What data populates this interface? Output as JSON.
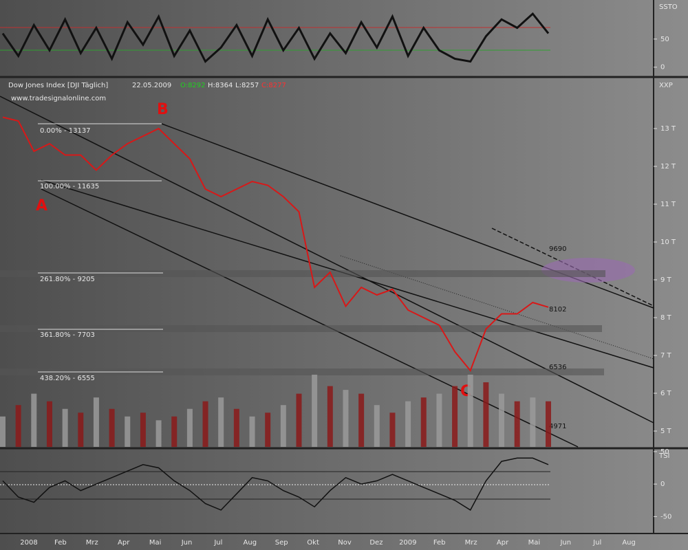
{
  "stochastic_panel": {
    "label": "SSTO",
    "ylim": [
      -15,
      117
    ],
    "ticks": [
      50,
      0
    ],
    "values": [
      60,
      20,
      75,
      30,
      85,
      25,
      70,
      15,
      80,
      40,
      90,
      20,
      65,
      10,
      35,
      75,
      20,
      85,
      30,
      70,
      15,
      60,
      25,
      80,
      35,
      90,
      20,
      70,
      30,
      15,
      10,
      55,
      85,
      70,
      95,
      60
    ]
  },
  "main_panel": {
    "title": "Dow Jones Index [DJI  Täglich]",
    "date": "22.05.2009",
    "ohlc": [
      "O:8292",
      "H:8364",
      "L:8257",
      "C:8277"
    ],
    "website": "www.tradesignalonline.com",
    "label": "XXP",
    "ylim": [
      4582,
      14309
    ],
    "ticks": [
      {
        "value": 13000,
        "label": "13 T"
      },
      {
        "value": 12000,
        "label": "12 T"
      },
      {
        "value": 11000,
        "label": "11 T"
      },
      {
        "value": 10000,
        "label": "10 T"
      },
      {
        "value": 9000,
        "label": "9 T"
      },
      {
        "value": 8000,
        "label": "8 T"
      },
      {
        "value": 7000,
        "label": "7 T"
      },
      {
        "value": 6000,
        "label": "6 T"
      },
      {
        "value": 5000,
        "label": "5 T"
      }
    ],
    "closes": [
      13300,
      13200,
      12400,
      12600,
      12300,
      12300,
      11900,
      12300,
      12600,
      12800,
      13000,
      12600,
      12200,
      11400,
      11200,
      11400,
      11600,
      11500,
      11200,
      10800,
      8800,
      9200,
      8300,
      8800,
      8600,
      8750,
      8200,
      8000,
      7800,
      7100,
      6600,
      7700,
      8100,
      8100,
      8400,
      8277
    ],
    "volume": [
      40,
      55,
      70,
      60,
      50,
      45,
      65,
      50,
      40,
      45,
      35,
      40,
      50,
      60,
      65,
      50,
      40,
      45,
      55,
      70,
      95,
      80,
      75,
      70,
      55,
      45,
      60,
      65,
      70,
      80,
      95,
      85,
      70,
      60,
      65,
      60
    ],
    "points": [
      "A",
      "B",
      "C"
    ],
    "fib_levels": [
      "0.00% - 13137",
      "100.00% - 11635",
      "261.80% - 9205",
      "361.80% - 7703",
      "438.20% - 6555"
    ],
    "level_labels": [
      "9690",
      "8102",
      "6536",
      "4971"
    ]
  },
  "tsi_panel": {
    "label": "TSI",
    "ylim": [
      -75,
      52
    ],
    "ticks": [
      50,
      0,
      -50
    ],
    "values": [
      5,
      -20,
      -28,
      -5,
      5,
      -10,
      0,
      10,
      20,
      30,
      25,
      5,
      -10,
      -30,
      -40,
      -15,
      10,
      5,
      -10,
      -20,
      -35,
      -10,
      10,
      0,
      5,
      15,
      5,
      -5,
      -15,
      -25,
      -40,
      5,
      35,
      40,
      40,
      30
    ]
  },
  "time_axis": {
    "labels": [
      "2008",
      "Feb",
      "Mrz",
      "Apr",
      "Mai",
      "Jun",
      "Jul",
      "Aug",
      "Sep",
      "Okt",
      "Nov",
      "Dez",
      "2009",
      "Feb",
      "Mrz",
      "Apr",
      "Mai",
      "Jun",
      "Jul",
      "Aug"
    ]
  }
}
